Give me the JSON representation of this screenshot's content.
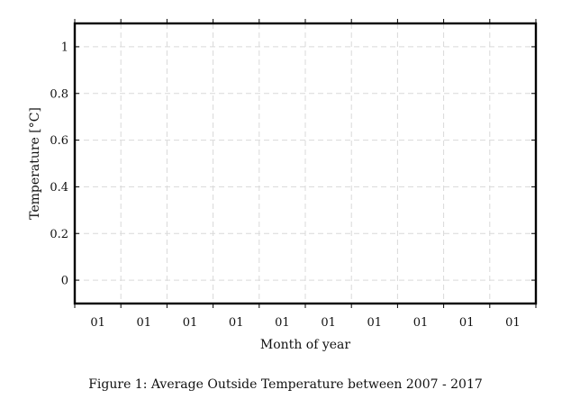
{
  "chart_data": {
    "type": "line",
    "title": "",
    "xlabel": "Month of year",
    "ylabel": "Temperature [°C]",
    "x_tick_labels": [
      "01",
      "01",
      "01",
      "01",
      "01",
      "01",
      "01",
      "01",
      "01",
      "01"
    ],
    "y_ticks": [
      0,
      0.2,
      0.4,
      0.6,
      0.8,
      1
    ],
    "y_tick_labels": [
      "0",
      "0.2",
      "0.4",
      "0.6",
      "0.8",
      "1"
    ],
    "ylim": [
      -0.1,
      1.1
    ],
    "grid": true,
    "series": []
  },
  "caption": "Figure 1: Average Outside Temperature between 2007 - 2017",
  "colors": {
    "axis": "#000000",
    "grid": "#d9d9d9",
    "text": "#111111"
  }
}
